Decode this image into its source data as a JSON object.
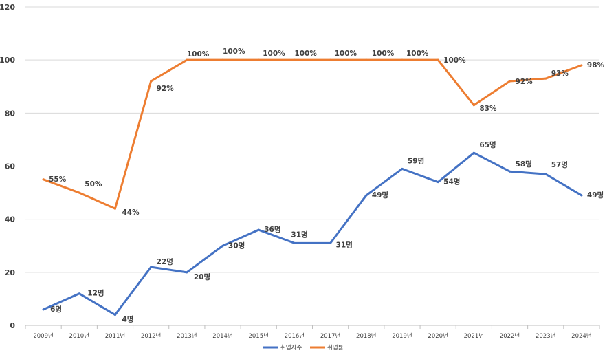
{
  "chart_data": {
    "type": "line",
    "categories": [
      "2009년",
      "2010년",
      "2011년",
      "2012년",
      "2013년",
      "2014년",
      "2015년",
      "2016년",
      "2017년",
      "2018년",
      "2019년",
      "2020년",
      "2021년",
      "2022년",
      "2023년",
      "2024년"
    ],
    "ylim": [
      0,
      120
    ],
    "yticks": [
      0,
      20,
      40,
      60,
      80,
      100,
      120
    ],
    "grid": true,
    "legend_position": "bottom",
    "series": [
      {
        "name": "취업자수",
        "color": "#4472c4",
        "values": [
          6,
          12,
          4,
          22,
          20,
          30,
          36,
          31,
          31,
          49,
          59,
          54,
          65,
          58,
          57,
          49
        ],
        "labels": [
          "6명",
          "12명",
          "4명",
          "22명",
          "20명",
          "30명",
          "36명",
          "31명",
          "31명",
          "49명",
          "59명",
          "54명",
          "65명",
          "58명",
          "57명",
          "49명"
        ]
      },
      {
        "name": "취업률",
        "color": "#ed7d31",
        "values": [
          55,
          50,
          44,
          92,
          100,
          100,
          100,
          100,
          100,
          100,
          100,
          100,
          83,
          92,
          93,
          98
        ],
        "labels": [
          "55%",
          "50%",
          "44%",
          "92%",
          "100%",
          "100%",
          "100%",
          "100%",
          "100%",
          "100%",
          "100%",
          "100%",
          "83%",
          "92%",
          "93%",
          "98%"
        ]
      }
    ]
  }
}
